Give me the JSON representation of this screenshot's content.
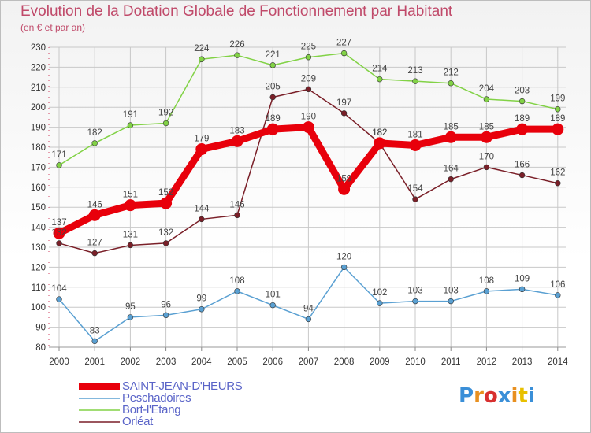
{
  "title": "Evolution de la Dotation Globale de Fonctionnement par Habitant",
  "subtitle": "(en € et par an)",
  "logo": "Proxiti",
  "colors": {
    "title": "#c04a6a",
    "legend_text": "#5a64c8",
    "axis_text": "#333333",
    "grid": "#c8c8c8"
  },
  "chart_data": {
    "type": "line",
    "title": "Evolution de la Dotation Globale de Fonctionnement par Habitant",
    "subtitle": "(en € et par an)",
    "xlabel": "",
    "ylabel": "",
    "x": [
      "2000",
      "2001",
      "2002",
      "2003",
      "2004",
      "2005",
      "2006",
      "2007",
      "2008",
      "2009",
      "2010",
      "2011",
      "2012",
      "2013",
      "2014"
    ],
    "ylim": [
      80,
      230
    ],
    "yticks": [
      80,
      90,
      100,
      110,
      120,
      130,
      140,
      150,
      160,
      170,
      180,
      190,
      200,
      210,
      220,
      230
    ],
    "grid": true,
    "legend_position": "bottom-left",
    "series": [
      {
        "name": "SAINT-JEAN-D'HEURS",
        "color": "#e8000b",
        "thick": true,
        "values": [
          137,
          146,
          151,
          152,
          179,
          183,
          189,
          190,
          159,
          182,
          181,
          185,
          185,
          189,
          189
        ]
      },
      {
        "name": "Peschadoires",
        "color": "#5aa0d2",
        "thick": false,
        "values": [
          104,
          83,
          95,
          96,
          99,
          108,
          101,
          94,
          120,
          102,
          103,
          103,
          108,
          109,
          106
        ]
      },
      {
        "name": "Bort-l'Etang",
        "color": "#82d246",
        "thick": false,
        "values": [
          171,
          182,
          191,
          192,
          224,
          226,
          221,
          225,
          227,
          214,
          213,
          212,
          204,
          203,
          199
        ]
      },
      {
        "name": "Orléat",
        "color": "#7a1f28",
        "thick": false,
        "values": [
          132,
          127,
          131,
          132,
          144,
          146,
          205,
          209,
          197,
          182,
          154,
          164,
          170,
          166,
          162
        ]
      }
    ]
  }
}
